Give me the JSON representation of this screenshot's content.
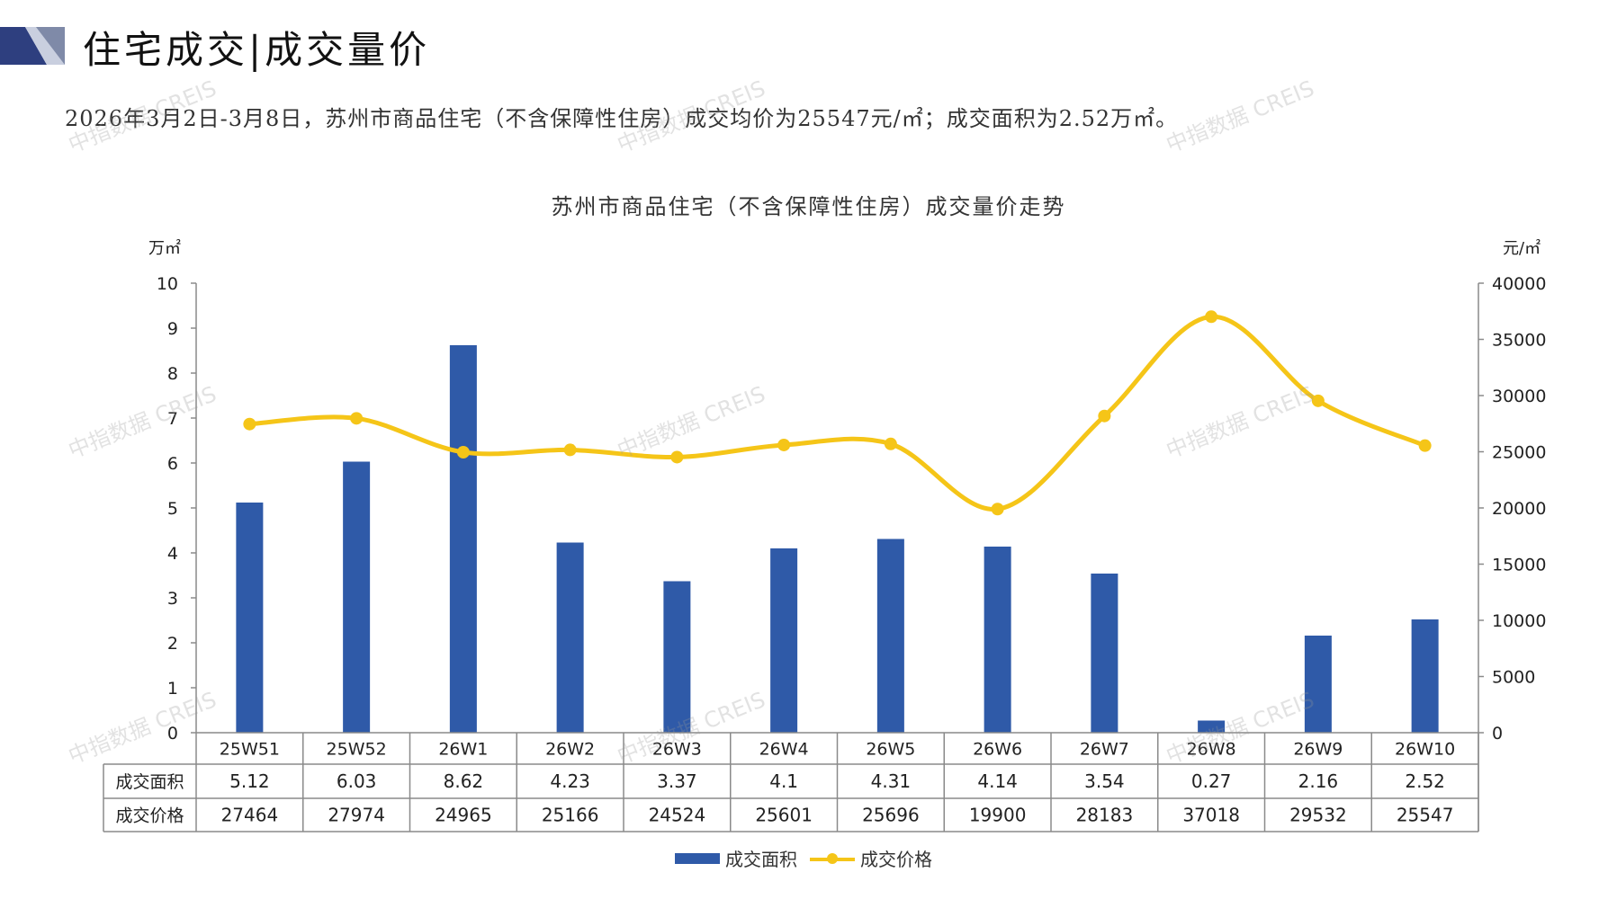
{
  "header": {
    "title": "住宅成交|成交量价",
    "summary": "2026年3月2日-3月8日，苏州市商品住宅（不含保障性住房）成交均价为25547元/㎡；成交面积为2.52万㎡。"
  },
  "watermark": {
    "text": "中指数据 CREIS"
  },
  "chart_data": {
    "type": "bar",
    "title": "苏州市商品住宅（不含保障性住房）成交量价走势",
    "categories": [
      "25W51",
      "25W52",
      "26W1",
      "26W2",
      "26W3",
      "26W4",
      "26W5",
      "26W6",
      "26W7",
      "26W8",
      "26W9",
      "26W10"
    ],
    "left_axis": {
      "unit": "万㎡",
      "ylim": [
        0,
        10
      ],
      "ticks": [
        "0",
        "1",
        "2",
        "3",
        "4",
        "5",
        "6",
        "7",
        "8",
        "9",
        "10"
      ]
    },
    "right_axis": {
      "unit": "元/㎡",
      "ylim": [
        0,
        40000
      ],
      "ticks": [
        "0",
        "5000",
        "10000",
        "15000",
        "20000",
        "25000",
        "30000",
        "35000",
        "40000"
      ]
    },
    "series": [
      {
        "name": "成交面积",
        "type": "bar",
        "axis": "left",
        "color": "#2f5aa8",
        "values": [
          5.12,
          6.03,
          8.62,
          4.23,
          3.37,
          4.1,
          4.31,
          4.14,
          3.54,
          0.27,
          2.16,
          2.52
        ],
        "labels": [
          "5.12",
          "6.03",
          "8.62",
          "4.23",
          "3.37",
          "4.1",
          "4.31",
          "4.14",
          "3.54",
          "0.27",
          "2.16",
          "2.52"
        ]
      },
      {
        "name": "成交价格",
        "type": "line",
        "axis": "right",
        "color": "#f5c518",
        "values": [
          27464,
          27974,
          24965,
          25166,
          24524,
          25601,
          25696,
          19900,
          28183,
          37018,
          29532,
          25547
        ],
        "labels": [
          "27464",
          "27974",
          "24965",
          "25166",
          "24524",
          "25601",
          "25696",
          "19900",
          "28183",
          "37018",
          "29532",
          "25547"
        ]
      }
    ],
    "legend": "bottom"
  },
  "colors": {
    "bar": "#2f5aa8",
    "line": "#f5c518",
    "header_dark": "#2e3f7f",
    "header_light": "#9aa6c8"
  }
}
